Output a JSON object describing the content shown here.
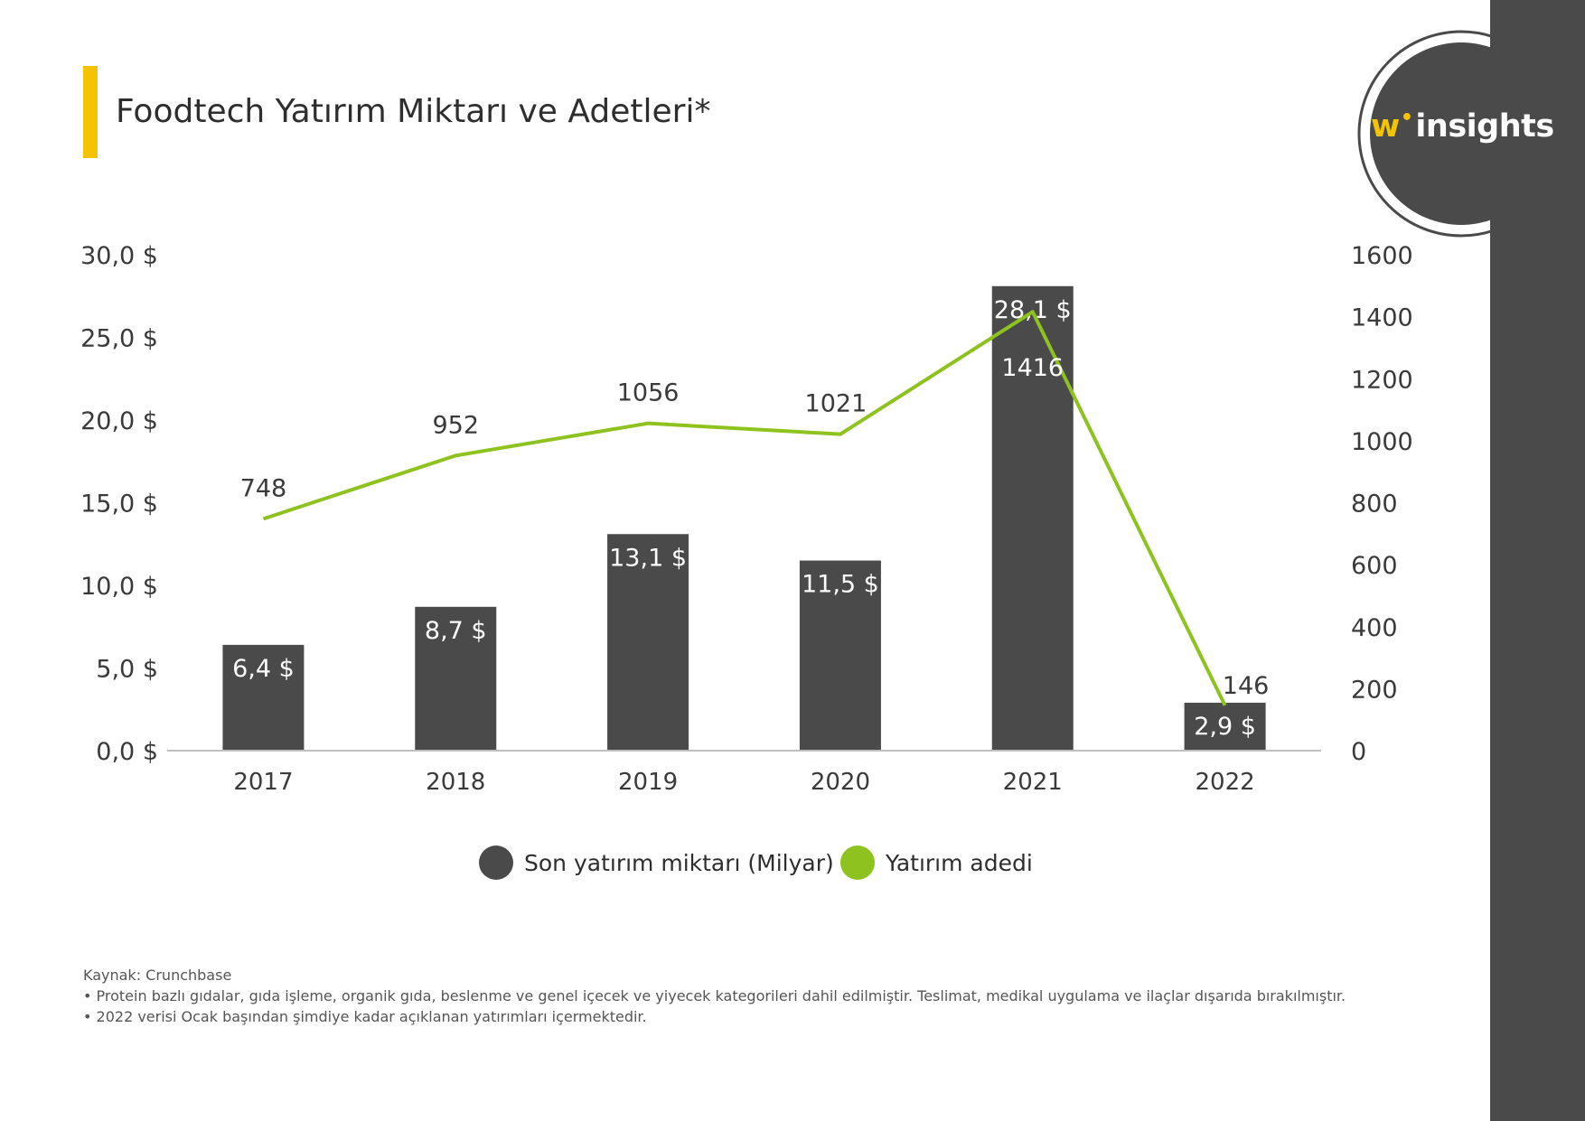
{
  "title": "Foodtech Yatırım Miktarı ve Adetleri*",
  "logo": {
    "w": "w",
    "dot": "•",
    "text": "insights"
  },
  "colors": {
    "bar": "#4a4a4a",
    "line": "#8dc21f",
    "accent": "#f5c400",
    "band": "#4a4a4a"
  },
  "chart_data": {
    "type": "bar",
    "categories": [
      "2017",
      "2018",
      "2019",
      "2020",
      "2021",
      "2022"
    ],
    "series": [
      {
        "name": "Son yatırım miktarı (Milyar)",
        "type": "bar",
        "axis": "left",
        "values": [
          6.4,
          8.7,
          13.1,
          11.5,
          28.1,
          2.9
        ],
        "labels": [
          "6,4 $",
          "8,7 $",
          "13,1 $",
          "11,5 $",
          "28,1 $",
          "2,9 $"
        ]
      },
      {
        "name": "Yatırım adedi",
        "type": "line",
        "axis": "right",
        "values": [
          748,
          952,
          1056,
          1021,
          1416,
          146
        ],
        "labels": [
          "748",
          "952",
          "1056",
          "1021",
          "1416",
          "146"
        ]
      }
    ],
    "left_axis": {
      "ylim": [
        0,
        30
      ],
      "ticks": [
        0,
        5,
        10,
        15,
        20,
        25,
        30
      ],
      "tick_labels": [
        "0,0 $",
        "5,0 $",
        "10,0 $",
        "15,0 $",
        "20,0 $",
        "25,0 $",
        "30,0 $"
      ]
    },
    "right_axis": {
      "ylim": [
        0,
        1600
      ],
      "ticks": [
        0,
        200,
        400,
        600,
        800,
        1000,
        1200,
        1400,
        1600
      ],
      "tick_labels": [
        "0",
        "200",
        "400",
        "600",
        "800",
        "1000",
        "1200",
        "1400",
        "1600"
      ]
    },
    "grid": false,
    "legend_position": "bottom-center"
  },
  "legend": [
    {
      "label": "Son yatırım miktarı (Milyar)",
      "color": "#4a4a4a"
    },
    {
      "label": "Yatırım adedi",
      "color": "#8dc21f"
    }
  ],
  "footnotes": {
    "source": "Kaynak: Crunchbase",
    "note1": "• Protein bazlı gıdalar, gıda işleme, organik gıda, beslenme ve genel içecek ve yiyecek kategorileri dahil edilmiştir. Teslimat, medikal uygulama ve ilaçlar dışarıda bırakılmıştır.",
    "note2": "• 2022 verisi Ocak başından şimdiye kadar açıklanan yatırımları içermektedir."
  }
}
